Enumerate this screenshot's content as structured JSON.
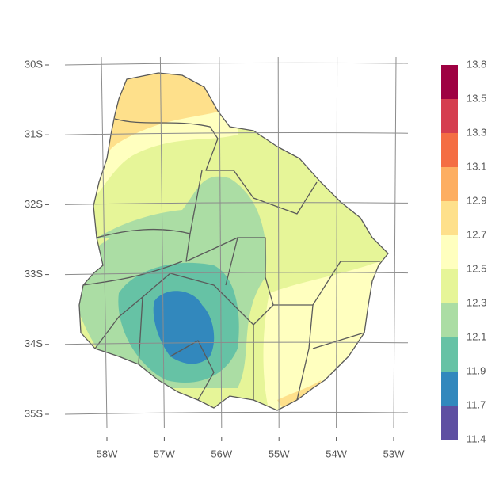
{
  "map": {
    "lat_labels": [
      "30S",
      "31S",
      "32S",
      "33S",
      "34S",
      "35S"
    ],
    "lon_labels": [
      "58W",
      "57W",
      "56W",
      "55W",
      "54W",
      "53W"
    ],
    "legend": {
      "breaks": [
        11.4,
        11.7,
        11.9,
        12.1,
        12.3,
        12.5,
        12.7,
        12.9,
        13.1,
        13.3,
        13.5,
        13.8
      ],
      "colors": [
        "#5e4fa2",
        "#3288bd",
        "#66c2a5",
        "#abdda4",
        "#e6f598",
        "#ffffbf",
        "#fee08b",
        "#fdae61",
        "#f46d43",
        "#d53e4f",
        "#9e0142"
      ]
    }
  }
}
